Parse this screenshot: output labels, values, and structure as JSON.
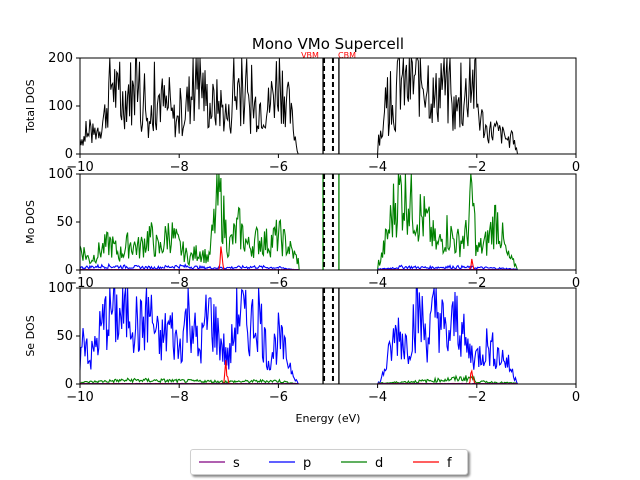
{
  "chart_data": {
    "title": "Mono VMo  Supercell",
    "type": "line",
    "markers": [
      {
        "label": "VBM",
        "x": -5.08,
        "color": "#ff0000"
      },
      {
        "label": "CBM",
        "x": -4.9,
        "color": "#ff0000"
      }
    ],
    "xlabel": "Energy (eV)",
    "xlim": [
      -10,
      0
    ],
    "xticks": [
      "−10",
      "−8",
      "−6",
      "−4",
      "−2",
      "0"
    ],
    "legend": {
      "placement": "bottom-center",
      "entries": [
        {
          "name": "s",
          "color": "#800080"
        },
        {
          "name": "p",
          "color": "#0000ff"
        },
        {
          "name": "d",
          "color": "#008000"
        },
        {
          "name": "f",
          "color": "#ff0000"
        }
      ]
    },
    "panels": [
      {
        "ylabel": "Total DOS",
        "ylim": [
          0,
          200
        ],
        "yticks": [
          "0",
          "100",
          "200"
        ],
        "series": [
          {
            "name": "total",
            "color": "#000000",
            "bands": [
              [
                -10,
                -5.6
              ],
              [
                -4,
                -1.2
              ]
            ],
            "points": [
              [
                -10,
                40
              ],
              [
                -9.8,
                45
              ],
              [
                -9.6,
                70
              ],
              [
                -9.5,
                100
              ],
              [
                -9.35,
                200
              ],
              [
                -9.2,
                120
              ],
              [
                -9.0,
                170
              ],
              [
                -8.8,
                120
              ],
              [
                -8.6,
                90
              ],
              [
                -8.4,
                150
              ],
              [
                -8.2,
                100
              ],
              [
                -8.0,
                80
              ],
              [
                -7.8,
                140
              ],
              [
                -7.6,
                200
              ],
              [
                -7.4,
                120
              ],
              [
                -7.2,
                130
              ],
              [
                -7.0,
                90
              ],
              [
                -6.8,
                180
              ],
              [
                -6.6,
                110
              ],
              [
                -6.4,
                130
              ],
              [
                -6.2,
                120
              ],
              [
                -6.0,
                200
              ],
              [
                -5.85,
                150
              ],
              [
                -5.7,
                70
              ],
              [
                -5.6,
                0
              ],
              [
                -3.95,
                50
              ],
              [
                -3.8,
                100
              ],
              [
                -3.65,
                120
              ],
              [
                -3.55,
                200
              ],
              [
                -3.4,
                170
              ],
              [
                -3.2,
                200
              ],
              [
                -3.0,
                200
              ],
              [
                -2.85,
                130
              ],
              [
                -2.7,
                200
              ],
              [
                -2.5,
                110
              ],
              [
                -2.3,
                120
              ],
              [
                -2.1,
                200
              ],
              [
                -1.95,
                100
              ],
              [
                -1.8,
                60
              ],
              [
                -1.6,
                60
              ],
              [
                -1.4,
                40
              ],
              [
                -1.2,
                20
              ]
            ]
          }
        ]
      },
      {
        "ylabel": "Mo DOS",
        "ylim": [
          0,
          100
        ],
        "yticks": [
          "0",
          "50",
          "100"
        ],
        "series": [
          {
            "name": "d",
            "color": "#008000",
            "bands": [
              [
                -10,
                -5.6
              ],
              [
                -4,
                -1.2
              ]
            ],
            "points": [
              [
                -10,
                30
              ],
              [
                -9.8,
                12
              ],
              [
                -9.6,
                25
              ],
              [
                -9.4,
                35
              ],
              [
                -9.2,
                20
              ],
              [
                -9.0,
                35
              ],
              [
                -8.8,
                28
              ],
              [
                -8.6,
                45
              ],
              [
                -8.4,
                25
              ],
              [
                -8.2,
                50
              ],
              [
                -8.0,
                30
              ],
              [
                -7.8,
                15
              ],
              [
                -7.6,
                25
              ],
              [
                -7.4,
                15
              ],
              [
                -7.2,
                100
              ],
              [
                -7.0,
                30
              ],
              [
                -6.8,
                55
              ],
              [
                -6.6,
                30
              ],
              [
                -6.4,
                40
              ],
              [
                -6.2,
                35
              ],
              [
                -6.0,
                45
              ],
              [
                -5.8,
                30
              ],
              [
                -5.6,
                12
              ],
              [
                -3.95,
                10
              ],
              [
                -3.8,
                45
              ],
              [
                -3.6,
                100
              ],
              [
                -3.4,
                100
              ],
              [
                -3.2,
                75
              ],
              [
                -3.0,
                60
              ],
              [
                -2.8,
                30
              ],
              [
                -2.6,
                50
              ],
              [
                -2.4,
                35
              ],
              [
                -2.2,
                45
              ],
              [
                -2.1,
                100
              ],
              [
                -2.0,
                25
              ],
              [
                -1.8,
                35
              ],
              [
                -1.6,
                70
              ],
              [
                -1.4,
                20
              ],
              [
                -1.2,
                5
              ]
            ]
          },
          {
            "name": "p",
            "color": "#0000ff",
            "bands": [
              [
                -10,
                -5.6
              ],
              [
                -4,
                -1.2
              ]
            ],
            "points": [
              [
                -10,
                3
              ],
              [
                -9.5,
                5
              ],
              [
                -9.0,
                4
              ],
              [
                -8.5,
                3
              ],
              [
                -8.0,
                5
              ],
              [
                -7.5,
                3
              ],
              [
                -7.0,
                3
              ],
              [
                -6.5,
                4
              ],
              [
                -6.0,
                3
              ],
              [
                -5.6,
                0
              ],
              [
                -3.95,
                1
              ],
              [
                -3.5,
                4
              ],
              [
                -3.0,
                3
              ],
              [
                -2.5,
                4
              ],
              [
                -2.0,
                3
              ],
              [
                -1.5,
                2
              ],
              [
                -1.2,
                1
              ]
            ]
          },
          {
            "name": "f",
            "color": "#ff0000",
            "bands": [
              [
                -10,
                -5.6
              ],
              [
                -4,
                -1.2
              ]
            ],
            "points": [
              [
                -10,
                0.5
              ],
              [
                -7.2,
                0.5
              ],
              [
                -7.15,
                40
              ],
              [
                -7.1,
                0.5
              ],
              [
                -5.6,
                0
              ],
              [
                -3.95,
                0.5
              ],
              [
                -2.15,
                0.5
              ],
              [
                -2.1,
                10
              ],
              [
                -2.05,
                0.5
              ],
              [
                -1.2,
                0
              ]
            ]
          },
          {
            "name": "s",
            "color": "#800080",
            "bands": [
              [
                -10,
                -5.6
              ],
              [
                -4,
                -1.2
              ]
            ],
            "points": [
              [
                -10,
                0.5
              ],
              [
                -5.6,
                0.5
              ],
              [
                -3.95,
                0.5
              ],
              [
                -1.2,
                0.5
              ]
            ]
          }
        ]
      },
      {
        "ylabel": "Se DOS",
        "ylim": [
          0,
          100
        ],
        "yticks": [
          "0",
          "50",
          "100"
        ],
        "series": [
          {
            "name": "p",
            "color": "#0000ff",
            "bands": [
              [
                -10,
                -5.6
              ],
              [
                -4,
                -1.2
              ]
            ],
            "points": [
              [
                -10,
                30
              ],
              [
                -9.9,
                70
              ],
              [
                -9.8,
                30
              ],
              [
                -9.6,
                65
              ],
              [
                -9.4,
                100
              ],
              [
                -9.2,
                85
              ],
              [
                -9.0,
                100
              ],
              [
                -8.8,
                70
              ],
              [
                -8.6,
                95
              ],
              [
                -8.4,
                50
              ],
              [
                -8.2,
                75
              ],
              [
                -8.0,
                45
              ],
              [
                -7.8,
                100
              ],
              [
                -7.6,
                40
              ],
              [
                -7.4,
                95
              ],
              [
                -7.2,
                60
              ],
              [
                -7.0,
                30
              ],
              [
                -6.8,
                100
              ],
              [
                -6.6,
                70
              ],
              [
                -6.4,
                95
              ],
              [
                -6.2,
                30
              ],
              [
                -6.0,
                60
              ],
              [
                -5.8,
                30
              ],
              [
                -5.6,
                0
              ],
              [
                -3.95,
                2
              ],
              [
                -3.8,
                30
              ],
              [
                -3.6,
                70
              ],
              [
                -3.4,
                50
              ],
              [
                -3.2,
                100
              ],
              [
                -3.0,
                60
              ],
              [
                -2.8,
                100
              ],
              [
                -2.6,
                55
              ],
              [
                -2.4,
                90
              ],
              [
                -2.2,
                45
              ],
              [
                -2.0,
                35
              ],
              [
                -1.8,
                50
              ],
              [
                -1.6,
                40
              ],
              [
                -1.4,
                30
              ],
              [
                -1.2,
                5
              ]
            ]
          },
          {
            "name": "d",
            "color": "#008000",
            "bands": [
              [
                -10,
                -5.6
              ],
              [
                -4,
                -1.2
              ]
            ],
            "points": [
              [
                -10,
                2
              ],
              [
                -9,
                5
              ],
              [
                -8,
                4
              ],
              [
                -7,
                3
              ],
              [
                -6,
                4
              ],
              [
                -5.6,
                0
              ],
              [
                -3.95,
                1
              ],
              [
                -3,
                4
              ],
              [
                -2.1,
                8
              ],
              [
                -2,
                3
              ],
              [
                -1.2,
                1
              ]
            ]
          },
          {
            "name": "f",
            "color": "#ff0000",
            "bands": [
              [
                -10,
                -5.6
              ],
              [
                -4,
                -1.2
              ]
            ],
            "points": [
              [
                -10,
                0.5
              ],
              [
                -7.1,
                0.5
              ],
              [
                -7.05,
                25
              ],
              [
                -7.0,
                0.5
              ],
              [
                -5.6,
                0
              ],
              [
                -3.95,
                0.5
              ],
              [
                -2.15,
                0.5
              ],
              [
                -2.1,
                20
              ],
              [
                -2.05,
                0.5
              ],
              [
                -1.2,
                0
              ]
            ]
          },
          {
            "name": "s",
            "color": "#800080",
            "bands": [
              [
                -10,
                -5.6
              ],
              [
                -4,
                -1.2
              ]
            ],
            "points": [
              [
                -10,
                0.5
              ],
              [
                -5.6,
                0.5
              ],
              [
                -3.95,
                0.5
              ],
              [
                -1.2,
                0.5
              ]
            ]
          }
        ]
      }
    ]
  }
}
